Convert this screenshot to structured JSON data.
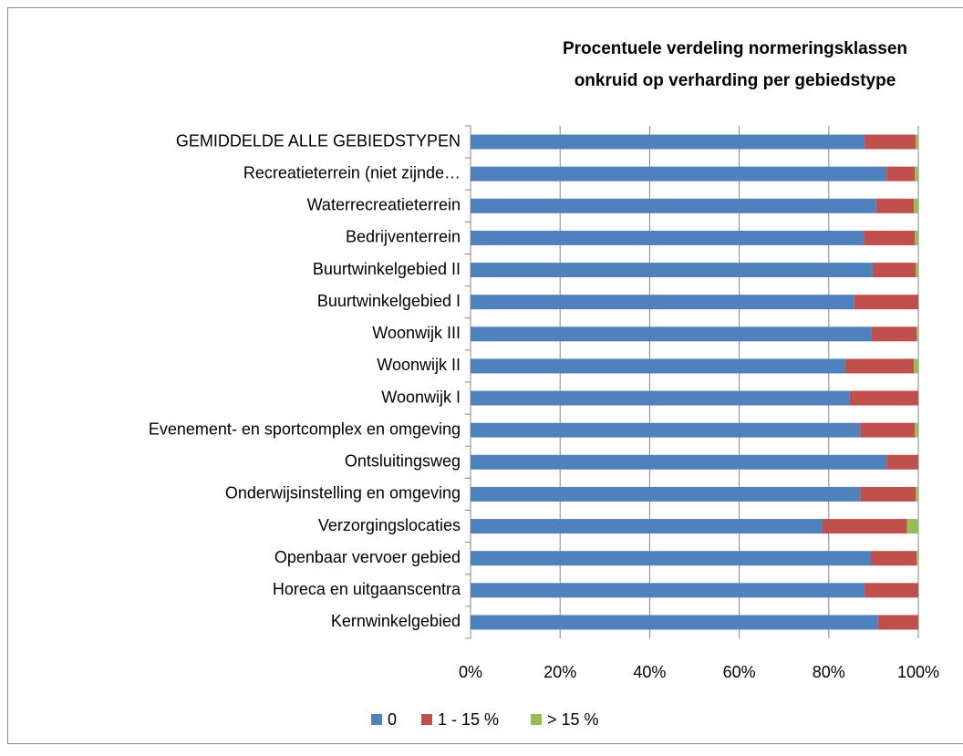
{
  "chart_data": {
    "type": "stacked-barh",
    "title": [
      "Procentuele verdeling normeringsklassen",
      "onkruid op verharding per gebiedstype"
    ],
    "categories": [
      "GEMIDDELDE ALLE GEBIEDSTYPEN",
      "Recreatieterrein (niet zijnde…",
      "Waterrecreatieterrein",
      "Bedrijventerrein",
      "Buurtwinkelgebied II",
      "Buurtwinkelgebied I",
      "Woonwijk III",
      "Woonwijk II",
      "Woonwijk I",
      "Evenement- en sportcomplex en omgeving",
      "Ontsluitingsweg",
      "Onderwijsinstelling en omgeving",
      "Verzorgingslocaties",
      "Openbaar vervoer gebied",
      "Horeca en uitgaanscentra",
      "Kernwinkelgebied"
    ],
    "series": [
      {
        "name": "0",
        "color": "#4f81bd",
        "values": [
          88.0,
          92.9,
          90.6,
          87.8,
          89.8,
          85.7,
          89.6,
          83.7,
          84.7,
          87.0,
          92.9,
          87.0,
          78.6,
          89.4,
          88.0,
          91.0
        ]
      },
      {
        "name": "1 - 15 %",
        "color": "#c0504d",
        "values": [
          11.4,
          6.3,
          8.4,
          11.4,
          9.6,
          14.3,
          10.0,
          15.3,
          15.3,
          12.2,
          7.1,
          12.4,
          18.9,
          10.2,
          12.0,
          9.0
        ]
      },
      {
        "name": "> 15 %",
        "color": "#9bbb59",
        "values": [
          0.6,
          0.8,
          1.0,
          0.8,
          0.6,
          0,
          0.4,
          1.0,
          0,
          0.8,
          0,
          0.6,
          2.5,
          0.4,
          0,
          0
        ]
      }
    ],
    "xlim": [
      0,
      100
    ],
    "xticks": [
      {
        "value": 0,
        "label": "0%"
      },
      {
        "value": 20,
        "label": "20%"
      },
      {
        "value": 40,
        "label": "40%"
      },
      {
        "value": 60,
        "label": "60%"
      },
      {
        "value": 80,
        "label": "80%"
      },
      {
        "value": 100,
        "label": "100%"
      }
    ],
    "grid": true,
    "legend": "bottom"
  }
}
